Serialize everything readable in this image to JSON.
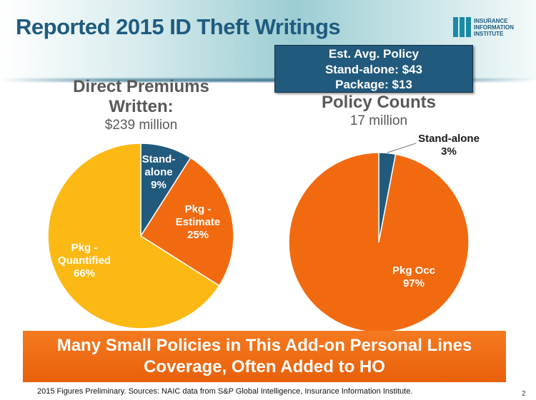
{
  "title": "Reported 2015 ID Theft Writings",
  "logo": {
    "lines": [
      "INSURANCE",
      "INFORMATION",
      "INSTITUTE"
    ]
  },
  "avg_box": {
    "lines": [
      "Est. Avg. Policy",
      "Stand-alone: $43",
      "Package: $13"
    ]
  },
  "colors": {
    "standalone": "#215a7d",
    "pkg_estimate": "#f26a10",
    "pkg_quantified": "#fdb913",
    "banner": "#f07020",
    "title": "#1f5b7f"
  },
  "chart_data": [
    {
      "type": "pie",
      "title": "Direct Premiums Written:",
      "title_lines": [
        "Direct Premiums",
        "Written:"
      ],
      "subtitle": "$239 million",
      "slices": [
        {
          "label": "Stand-alone",
          "label_lines": [
            "Stand-",
            "alone",
            "9%"
          ],
          "value": 9
        },
        {
          "label": "Pkg - Estimate",
          "label_lines": [
            "Pkg -",
            "Estimate",
            "25%"
          ],
          "value": 25
        },
        {
          "label": "Pkg - Quantified",
          "label_lines": [
            "Pkg -",
            "Quantified",
            "66%"
          ],
          "value": 66
        }
      ]
    },
    {
      "type": "pie",
      "title": "Policy Counts",
      "subtitle": "17 million",
      "slices": [
        {
          "label": "Stand-alone",
          "label_lines": [
            "Stand-alone",
            "3%"
          ],
          "value": 3
        },
        {
          "label": "Pkg Occ",
          "label_lines": [
            "Pkg Occ",
            "97%"
          ],
          "value": 97
        }
      ]
    }
  ],
  "banner": {
    "lines": [
      "Many Small Policies in This Add-on Personal Lines",
      "Coverage, Often Added to HO"
    ]
  },
  "footnote": "2015 Figures Preliminary. Sources: NAIC data from S&P Global Intelligence, Insurance Information Institute.",
  "page_number": "2"
}
